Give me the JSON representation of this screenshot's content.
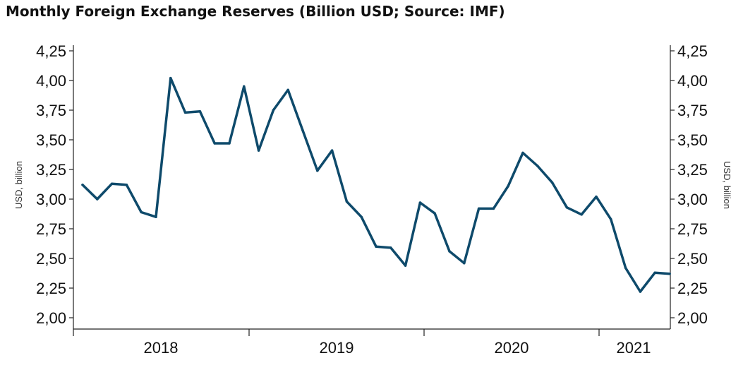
{
  "chart_data": {
    "type": "line",
    "title": "Monthly Foreign Exchange Reserves (Billion USD; Source: IMF)",
    "ylabel": "USD, billion",
    "ylabel_right": "USD, billion",
    "xlabel": "",
    "ylim": [
      2.0,
      4.25
    ],
    "yticks": [
      "2,00",
      "2,25",
      "2,50",
      "2,75",
      "3,00",
      "3,25",
      "3,50",
      "3,75",
      "4,00",
      "4,25"
    ],
    "x_tick_labels": [
      "2018",
      "2019",
      "2020",
      "2021"
    ],
    "line_color": "#0e4a6b",
    "series": [
      {
        "name": "Foreign Exchange Reserves",
        "values": [
          3.12,
          3.0,
          3.13,
          3.12,
          2.89,
          2.85,
          4.02,
          3.73,
          3.74,
          3.47,
          3.47,
          3.95,
          3.41,
          3.75,
          3.92,
          3.58,
          3.24,
          3.41,
          2.98,
          2.85,
          2.6,
          2.59,
          2.44,
          2.97,
          2.88,
          2.56,
          2.46,
          2.92,
          2.92,
          3.11,
          3.39,
          3.28,
          3.14,
          2.93,
          2.87,
          3.02,
          2.83,
          2.42,
          2.22,
          2.38,
          2.37
        ]
      }
    ]
  }
}
